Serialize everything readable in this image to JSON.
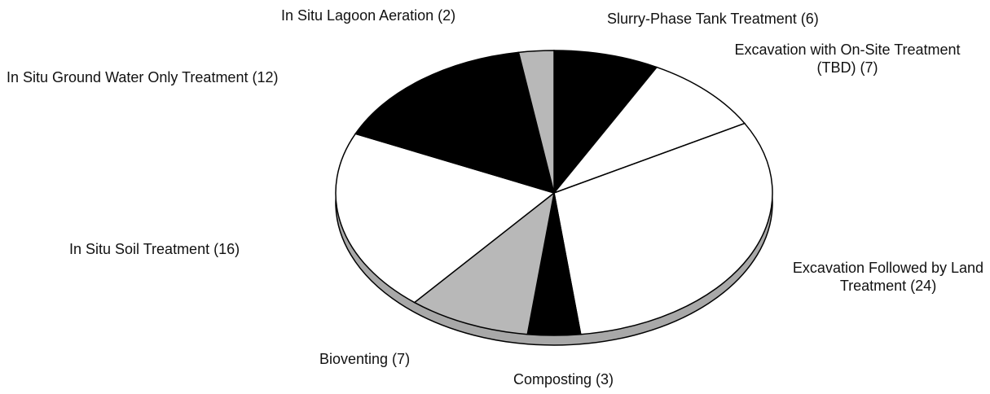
{
  "chart_data": {
    "type": "pie",
    "categories": [
      "Slurry-Phase Tank Treatment (6)",
      "Excavation with On-Site Treatment (TBD) (7)",
      "Excavation Followed by Land Treatment (24)",
      "Composting (3)",
      "Bioventing (7)",
      "In Situ Soil Treatment (16)",
      "In Situ Ground Water Only Treatment (12)",
      "In Situ Lagoon Aeration (2)"
    ],
    "values": [
      6,
      7,
      24,
      3,
      7,
      16,
      12,
      2
    ],
    "colors": [
      "#000000",
      "#ffffff",
      "#ffffff",
      "#000000",
      "#b8b8b8",
      "#ffffff",
      "#000000",
      "#b8b8b8"
    ]
  }
}
